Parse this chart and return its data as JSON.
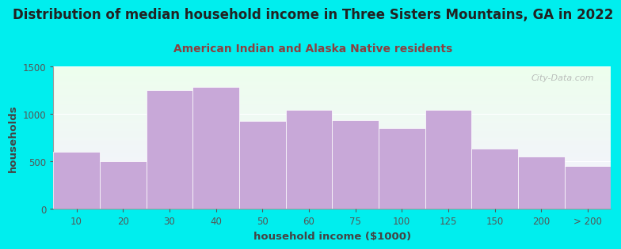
{
  "title": "Distribution of median household income in Three Sisters Mountains, GA in 2022",
  "subtitle": "American Indian and Alaska Native residents",
  "xlabel": "household income ($1000)",
  "ylabel": "households",
  "categories": [
    "10",
    "20",
    "30",
    "40",
    "50",
    "60",
    "75",
    "100",
    "125",
    "150",
    "200",
    "> 200"
  ],
  "values": [
    600,
    505,
    1250,
    1290,
    930,
    1045,
    935,
    850,
    1045,
    640,
    550,
    450
  ],
  "bar_color": "#c8a8d8",
  "background_color": "#00eeee",
  "title_color": "#222222",
  "subtitle_color": "#8b4040",
  "axis_label_color": "#444444",
  "tick_color": "#555555",
  "ylim": [
    0,
    1500
  ],
  "yticks": [
    0,
    500,
    1000,
    1500
  ],
  "title_fontsize": 12,
  "subtitle_fontsize": 10,
  "label_fontsize": 9.5,
  "tick_fontsize": 8.5,
  "watermark_text": "City-Data.com"
}
